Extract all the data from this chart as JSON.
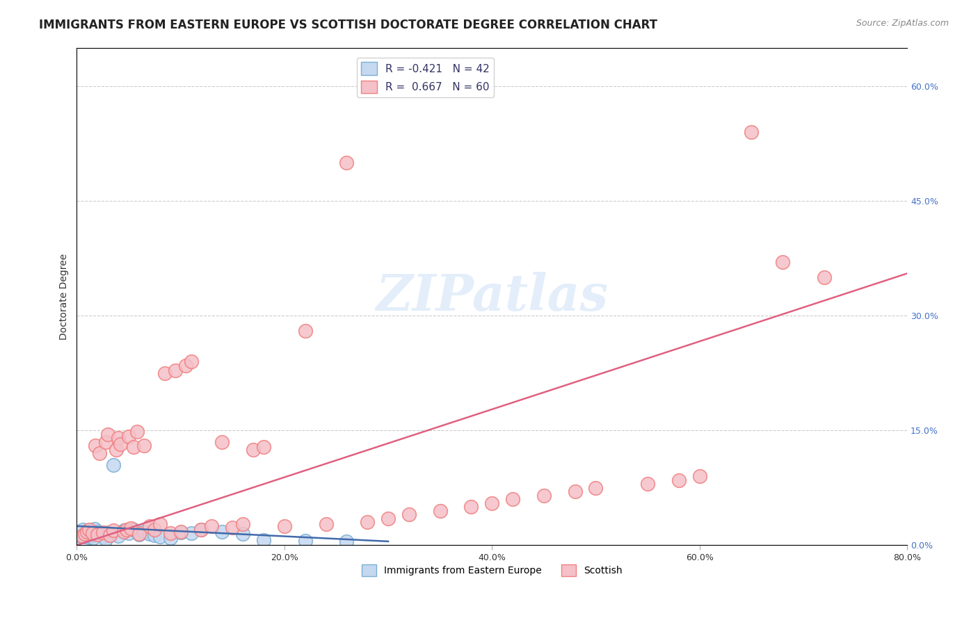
{
  "title": "IMMIGRANTS FROM EASTERN EUROPE VS SCOTTISH DOCTORATE DEGREE CORRELATION CHART",
  "source": "Source: ZipAtlas.com",
  "xlabel_bottom": "",
  "ylabel_left": "Doctorate Degree",
  "x_tick_labels": [
    "0.0%",
    "20.0%",
    "40.0%",
    "60.0%",
    "80.0%"
  ],
  "x_tick_positions": [
    0.0,
    20.0,
    40.0,
    60.0,
    80.0
  ],
  "y_tick_labels_right": [
    "0.0%",
    "15.0%",
    "30.0%",
    "45.0%",
    "60.0%"
  ],
  "y_tick_positions_right": [
    0.0,
    15.0,
    30.0,
    45.0,
    60.0
  ],
  "legend_entries": [
    {
      "label": "R = -0.421   N = 42",
      "color": "#aac4f0"
    },
    {
      "label": "R =  0.667   N = 60",
      "color": "#f5a0b5"
    }
  ],
  "legend_labels_bottom": [
    "Immigrants from Eastern Europe",
    "Scottish"
  ],
  "blue_scatter_x": [
    0.2,
    0.3,
    0.5,
    0.6,
    0.7,
    0.8,
    0.9,
    1.0,
    1.1,
    1.2,
    1.3,
    1.4,
    1.5,
    1.6,
    1.7,
    1.8,
    2.0,
    2.1,
    2.3,
    2.5,
    2.8,
    3.0,
    3.2,
    3.5,
    4.0,
    4.5,
    5.0,
    5.5,
    6.0,
    6.5,
    7.0,
    7.5,
    8.0,
    9.0,
    10.0,
    11.0,
    12.0,
    14.0,
    16.0,
    18.0,
    22.0,
    26.0
  ],
  "blue_scatter_y": [
    1.5,
    1.2,
    1.8,
    2.0,
    1.3,
    1.1,
    1.6,
    1.4,
    1.9,
    1.0,
    1.7,
    1.2,
    1.3,
    0.9,
    2.1,
    1.5,
    1.8,
    1.4,
    1.6,
    1.1,
    0.8,
    1.7,
    1.3,
    10.5,
    1.2,
    1.9,
    1.6,
    2.0,
    1.4,
    1.8,
    1.5,
    1.3,
    1.1,
    0.9,
    1.7,
    1.6,
    2.0,
    1.8,
    1.5,
    0.7,
    0.6,
    0.5
  ],
  "pink_scatter_x": [
    0.5,
    0.8,
    1.0,
    1.2,
    1.5,
    1.8,
    2.0,
    2.2,
    2.5,
    2.8,
    3.0,
    3.2,
    3.5,
    3.8,
    4.0,
    4.2,
    4.5,
    4.8,
    5.0,
    5.2,
    5.5,
    5.8,
    6.0,
    6.5,
    7.0,
    7.5,
    8.0,
    8.5,
    9.0,
    9.5,
    10.0,
    10.5,
    11.0,
    12.0,
    13.0,
    14.0,
    15.0,
    16.0,
    17.0,
    18.0,
    20.0,
    22.0,
    24.0,
    26.0,
    28.0,
    30.0,
    32.0,
    35.0,
    38.0,
    40.0,
    42.0,
    45.0,
    48.0,
    50.0,
    55.0,
    58.0,
    60.0,
    65.0,
    68.0,
    72.0
  ],
  "pink_scatter_y": [
    1.2,
    1.5,
    1.8,
    2.0,
    1.6,
    13.0,
    1.4,
    12.0,
    1.7,
    13.5,
    14.5,
    1.3,
    1.9,
    12.5,
    14.0,
    13.2,
    1.8,
    2.0,
    14.2,
    2.2,
    12.8,
    14.8,
    1.5,
    13.0,
    2.5,
    2.0,
    2.8,
    22.5,
    1.6,
    22.8,
    1.8,
    23.5,
    24.0,
    2.0,
    2.5,
    13.5,
    2.3,
    2.8,
    12.5,
    12.8,
    2.5,
    28.0,
    2.8,
    50.0,
    3.0,
    3.5,
    4.0,
    4.5,
    5.0,
    5.5,
    6.0,
    6.5,
    7.0,
    7.5,
    8.0,
    8.5,
    9.0,
    54.0,
    37.0,
    35.0
  ],
  "blue_trend_x": [
    0.0,
    30.0
  ],
  "blue_trend_y": [
    2.5,
    0.5
  ],
  "pink_trend_x": [
    0.0,
    80.0
  ],
  "pink_trend_y": [
    0.0,
    35.5
  ],
  "blue_color": "#7bafd4",
  "blue_fill": "#c5d8f0",
  "pink_color": "#f08080",
  "pink_fill": "#f5c0c8",
  "blue_line_color": "#4169aa",
  "pink_line_color": "#e06080",
  "watermark": "ZIPatlas",
  "title_fontsize": 12,
  "axis_label_fontsize": 10,
  "tick_fontsize": 9,
  "source_fontsize": 9,
  "xlim": [
    0.0,
    80.0
  ],
  "ylim": [
    0.0,
    65.0
  ]
}
